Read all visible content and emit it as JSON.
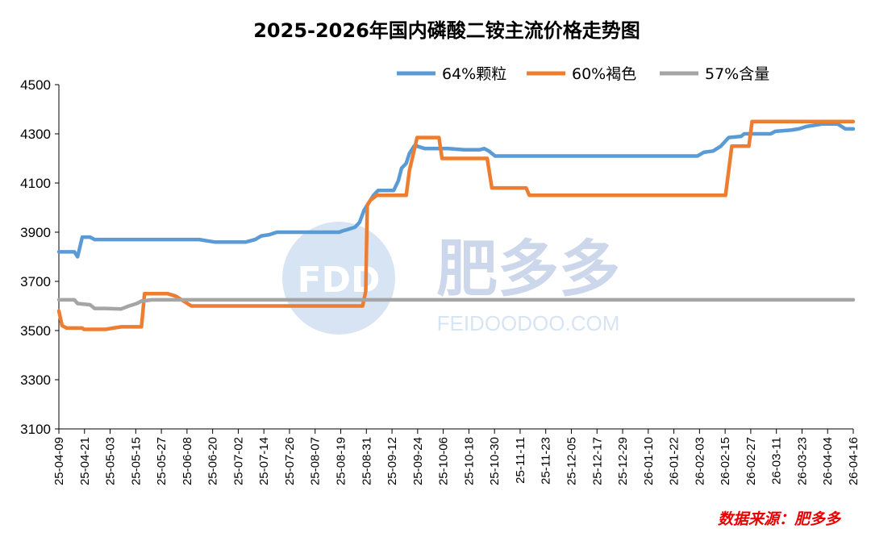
{
  "chart_data": {
    "type": "line",
    "title": "2025-2026年国内磷酸二铵主流价格走势图",
    "xlabel": "",
    "ylabel": "",
    "ylim": [
      3100,
      4500
    ],
    "yticks": [
      3100,
      3300,
      3500,
      3700,
      3900,
      4100,
      4300,
      4500
    ],
    "x": [
      "25-04-09",
      "25-04-21",
      "25-05-03",
      "25-05-15",
      "25-05-27",
      "25-06-08",
      "25-06-20",
      "25-07-02",
      "25-07-14",
      "25-07-26",
      "25-08-07",
      "25-08-19",
      "25-08-31",
      "25-09-12",
      "25-09-24",
      "25-10-06",
      "25-10-18",
      "25-10-30",
      "25-11-11",
      "25-11-23",
      "25-12-05",
      "25-12-17",
      "25-12-29",
      "26-01-10",
      "26-01-22",
      "26-02-03",
      "26-02-15",
      "26-02-27",
      "26-03-11",
      "26-03-23",
      "26-04-04",
      "26-04-16"
    ],
    "legend_position": "top-right",
    "grid": false,
    "series": [
      {
        "name": "64%颗粒",
        "color": "#5b9bd5",
        "points": [
          [
            0,
            3820
          ],
          [
            1,
            3820
          ],
          [
            1.2,
            3800
          ],
          [
            1.5,
            3880
          ],
          [
            2,
            3880
          ],
          [
            2.3,
            3870
          ],
          [
            3,
            3870
          ],
          [
            5,
            3870
          ],
          [
            7,
            3870
          ],
          [
            8,
            3870
          ],
          [
            9,
            3870
          ],
          [
            9.5,
            3865
          ],
          [
            10,
            3860
          ],
          [
            11,
            3860
          ],
          [
            12,
            3860
          ],
          [
            12.6,
            3870
          ],
          [
            13,
            3885
          ],
          [
            13.5,
            3890
          ],
          [
            14,
            3900
          ],
          [
            15,
            3900
          ],
          [
            16,
            3900
          ],
          [
            17,
            3900
          ],
          [
            18,
            3900
          ],
          [
            18.2,
            3905
          ],
          [
            18.5,
            3910
          ],
          [
            19,
            3920
          ],
          [
            19.3,
            3940
          ],
          [
            19.6,
            3990
          ],
          [
            19.8,
            4010
          ],
          [
            20.2,
            4050
          ],
          [
            20.5,
            4070
          ],
          [
            21,
            4070
          ],
          [
            21.5,
            4070
          ],
          [
            21.8,
            4110
          ],
          [
            22,
            4160
          ],
          [
            22.3,
            4180
          ],
          [
            22.5,
            4220
          ],
          [
            22.8,
            4250
          ],
          [
            23,
            4250
          ],
          [
            23.5,
            4240
          ],
          [
            24,
            4240
          ],
          [
            25,
            4240
          ],
          [
            26,
            4235
          ],
          [
            27,
            4235
          ],
          [
            27.3,
            4240
          ],
          [
            27.6,
            4230
          ],
          [
            28,
            4210
          ],
          [
            29,
            4210
          ],
          [
            30,
            4210
          ],
          [
            31,
            4210
          ],
          [
            32,
            4210
          ],
          [
            33,
            4210
          ],
          [
            34,
            4210
          ],
          [
            35,
            4210
          ],
          [
            36,
            4210
          ],
          [
            37,
            4210
          ],
          [
            38,
            4210
          ],
          [
            39,
            4210
          ],
          [
            40,
            4210
          ],
          [
            41,
            4210
          ],
          [
            41.4,
            4225
          ],
          [
            42,
            4230
          ],
          [
            42.5,
            4250
          ],
          [
            43,
            4285
          ],
          [
            43.8,
            4290
          ],
          [
            44,
            4300
          ],
          [
            45,
            4300
          ],
          [
            45.7,
            4300
          ],
          [
            46,
            4310
          ],
          [
            47,
            4315
          ],
          [
            47.5,
            4320
          ],
          [
            48,
            4330
          ],
          [
            49,
            4340
          ],
          [
            50,
            4340
          ],
          [
            50.5,
            4320
          ],
          [
            51,
            4320
          ]
        ]
      },
      {
        "name": "60%褐色",
        "color": "#ed7d31",
        "points": [
          [
            0,
            3580
          ],
          [
            0.2,
            3520
          ],
          [
            0.5,
            3510
          ],
          [
            1,
            3510
          ],
          [
            1.5,
            3510
          ],
          [
            1.6,
            3505
          ],
          [
            2,
            3505
          ],
          [
            3,
            3505
          ],
          [
            3.5,
            3510
          ],
          [
            4,
            3515
          ],
          [
            5,
            3515
          ],
          [
            5.3,
            3515
          ],
          [
            5.5,
            3650
          ],
          [
            7,
            3650
          ],
          [
            7.5,
            3640
          ],
          [
            8,
            3620
          ],
          [
            8.5,
            3600
          ],
          [
            9,
            3600
          ],
          [
            10,
            3600
          ],
          [
            11,
            3600
          ],
          [
            12,
            3600
          ],
          [
            13,
            3600
          ],
          [
            14,
            3600
          ],
          [
            15,
            3600
          ],
          [
            16,
            3600
          ],
          [
            17,
            3600
          ],
          [
            18,
            3600
          ],
          [
            19,
            3600
          ],
          [
            19.5,
            3600
          ],
          [
            19.7,
            3660
          ],
          [
            19.8,
            4010
          ],
          [
            20,
            4030
          ],
          [
            20.4,
            4050
          ],
          [
            21,
            4050
          ],
          [
            22,
            4050
          ],
          [
            22.3,
            4050
          ],
          [
            22.5,
            4150
          ],
          [
            23,
            4285
          ],
          [
            24,
            4285
          ],
          [
            24.4,
            4285
          ],
          [
            24.6,
            4200
          ],
          [
            25,
            4200
          ],
          [
            26,
            4200
          ],
          [
            27,
            4200
          ],
          [
            27.5,
            4200
          ],
          [
            27.8,
            4080
          ],
          [
            28,
            4080
          ],
          [
            29,
            4080
          ],
          [
            30,
            4080
          ],
          [
            30.2,
            4050
          ],
          [
            31,
            4050
          ],
          [
            32,
            4050
          ],
          [
            33,
            4050
          ],
          [
            34,
            4050
          ],
          [
            35,
            4050
          ],
          [
            36,
            4050
          ],
          [
            37,
            4050
          ],
          [
            38,
            4050
          ],
          [
            39,
            4050
          ],
          [
            40,
            4050
          ],
          [
            41,
            4050
          ],
          [
            42,
            4050
          ],
          [
            42.8,
            4050
          ],
          [
            43,
            4150
          ],
          [
            43.2,
            4250
          ],
          [
            44,
            4250
          ],
          [
            44.3,
            4250
          ],
          [
            44.5,
            4350
          ],
          [
            45,
            4350
          ],
          [
            46,
            4350
          ],
          [
            47,
            4350
          ],
          [
            48,
            4350
          ],
          [
            49,
            4350
          ],
          [
            50,
            4350
          ],
          [
            51,
            4350
          ]
        ]
      },
      {
        "name": "57%含量",
        "color": "#a5a5a5",
        "points": [
          [
            0,
            3625
          ],
          [
            1,
            3625
          ],
          [
            1.2,
            3610
          ],
          [
            2,
            3605
          ],
          [
            2.3,
            3590
          ],
          [
            3,
            3590
          ],
          [
            4,
            3588
          ],
          [
            4.5,
            3600
          ],
          [
            5,
            3610
          ],
          [
            5.3,
            3620
          ],
          [
            6,
            3625
          ],
          [
            7,
            3625
          ],
          [
            8,
            3625
          ],
          [
            9,
            3625
          ],
          [
            10,
            3625
          ],
          [
            11,
            3625
          ],
          [
            12,
            3625
          ],
          [
            13,
            3625
          ],
          [
            14,
            3625
          ],
          [
            15,
            3625
          ],
          [
            16,
            3625
          ],
          [
            17,
            3625
          ],
          [
            18,
            3625
          ],
          [
            19,
            3625
          ],
          [
            20,
            3625
          ],
          [
            21,
            3625
          ],
          [
            22,
            3625
          ],
          [
            23,
            3625
          ],
          [
            24,
            3625
          ],
          [
            25,
            3625
          ],
          [
            26,
            3625
          ],
          [
            27,
            3625
          ],
          [
            28,
            3625
          ],
          [
            29,
            3625
          ],
          [
            30,
            3625
          ],
          [
            31,
            3625
          ],
          [
            32,
            3625
          ],
          [
            33,
            3625
          ],
          [
            34,
            3625
          ],
          [
            35,
            3625
          ],
          [
            36,
            3625
          ],
          [
            37,
            3625
          ],
          [
            38,
            3625
          ],
          [
            39,
            3625
          ],
          [
            40,
            3625
          ],
          [
            41,
            3625
          ],
          [
            42,
            3625
          ],
          [
            43,
            3625
          ],
          [
            44,
            3625
          ],
          [
            45,
            3625
          ],
          [
            46,
            3625
          ],
          [
            47,
            3625
          ],
          [
            48,
            3625
          ],
          [
            49,
            3625
          ],
          [
            50,
            3625
          ],
          [
            51,
            3625
          ]
        ]
      }
    ]
  },
  "source_label": "数据来源：肥多多",
  "watermark": {
    "logo_text": "FDD",
    "brand_text": "肥多多",
    "url_text": "FEIDOODOO.COM"
  }
}
